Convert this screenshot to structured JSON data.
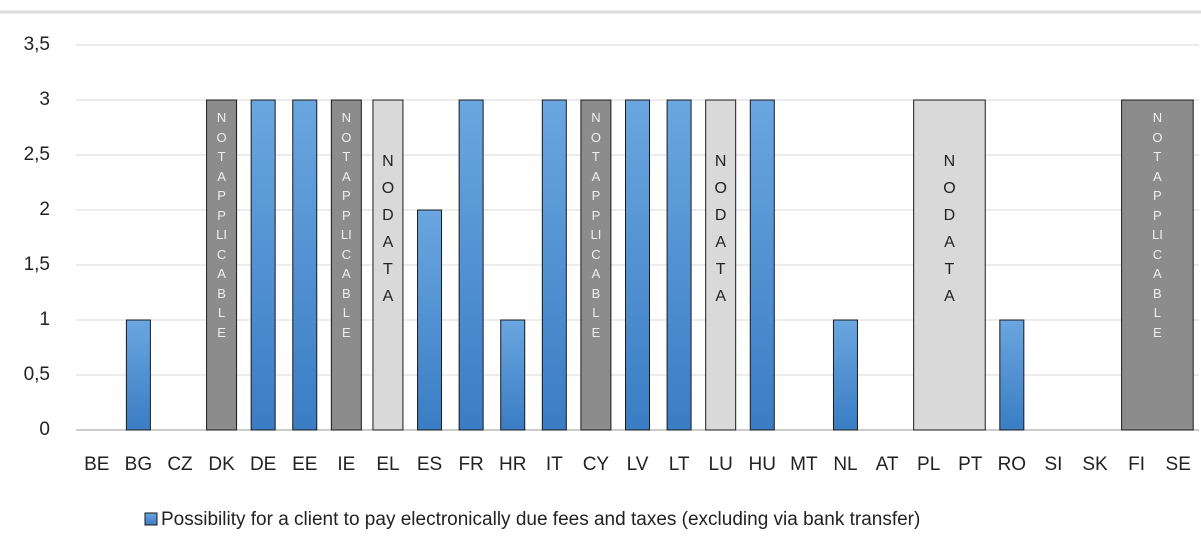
{
  "chart_data": {
    "type": "bar",
    "categories": [
      "BE",
      "BG",
      "CZ",
      "DK",
      "DE",
      "EE",
      "IE",
      "EL",
      "ES",
      "FR",
      "HR",
      "IT",
      "CY",
      "LV",
      "LT",
      "LU",
      "HU",
      "MT",
      "NL",
      "AT",
      "PL",
      "PT",
      "RO",
      "SI",
      "SK",
      "FI",
      "SE"
    ],
    "series": [
      {
        "name": "Possibility for a client to pay electronically due fees and taxes (excluding via bank transfer)",
        "color": "#4a8fd6",
        "values": [
          0,
          1,
          0,
          null,
          3,
          3,
          null,
          null,
          2,
          3,
          1,
          3,
          null,
          3,
          3,
          null,
          3,
          0,
          1,
          0,
          null,
          null,
          1,
          0,
          0,
          null,
          null
        ]
      }
    ],
    "annotations": [
      {
        "text": "NOT APPLICABLE",
        "from": "DK",
        "to": "DK",
        "value": 3,
        "color": "#8c8c8c"
      },
      {
        "text": "NOT APPLICABLE",
        "from": "IE",
        "to": "IE",
        "value": 3,
        "color": "#8c8c8c"
      },
      {
        "text": "NO DATA",
        "from": "EL",
        "to": "EL",
        "value": 3,
        "color": "#d9d9d9"
      },
      {
        "text": "NOT APPLICABLE",
        "from": "CY",
        "to": "CY",
        "value": 3,
        "color": "#8c8c8c"
      },
      {
        "text": "NO DATA",
        "from": "LU",
        "to": "LU",
        "value": 3,
        "color": "#d9d9d9"
      },
      {
        "text": "NO DATA",
        "from": "PL",
        "to": "PT",
        "value": 3,
        "color": "#d9d9d9"
      },
      {
        "text": "NOT APPLICABLE",
        "from": "FI",
        "to": "SE",
        "value": 3,
        "color": "#8c8c8c"
      }
    ],
    "ylim": [
      0,
      3.5
    ],
    "yticks": [
      0,
      {
        "value": 0.5,
        "label": "0,5"
      },
      1,
      {
        "value": 1.5,
        "label": "1,5"
      },
      2,
      {
        "value": 2.5,
        "label": "2,5"
      },
      3,
      {
        "value": 3.5,
        "label": "3,5"
      }
    ],
    "grid": true,
    "legend": "bottom"
  }
}
